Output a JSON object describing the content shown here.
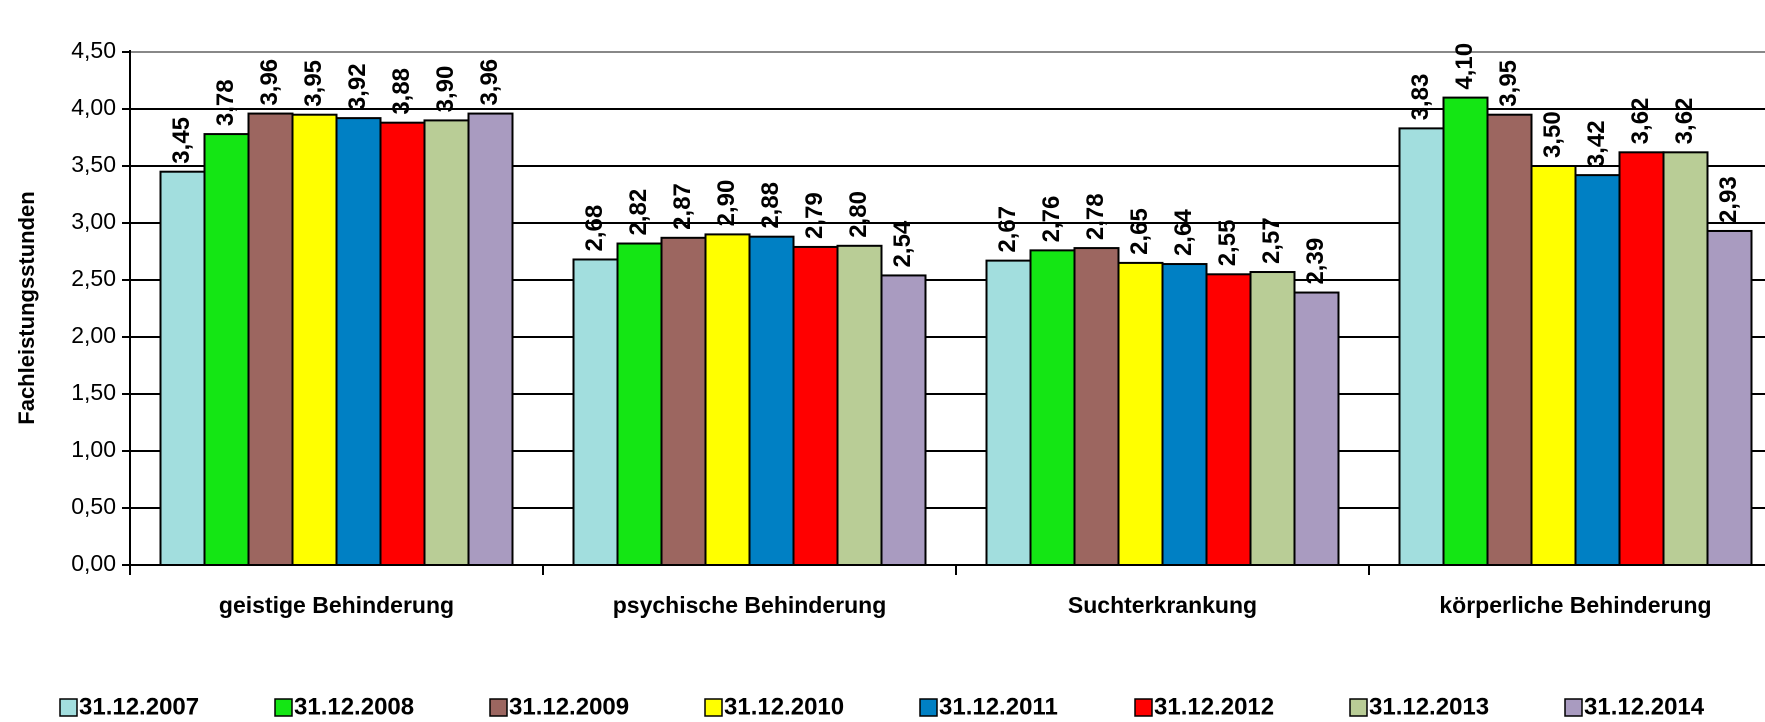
{
  "chart_data": {
    "type": "bar",
    "ylabel": "Fachleistungsstunden",
    "categories": [
      "geistige Behinderung",
      "psychische Behinderung",
      "Suchterkrankung",
      "körperliche Behinderung"
    ],
    "series": [
      {
        "name": "31.12.2007",
        "color": "#a2dede",
        "values": [
          3.45,
          2.68,
          2.67,
          3.83
        ],
        "value_labels": [
          "3,45",
          "2,68",
          "2,67",
          "3,83"
        ]
      },
      {
        "name": "31.12.2008",
        "color": "#14e614",
        "values": [
          3.78,
          2.82,
          2.76,
          4.1
        ],
        "value_labels": [
          "3,78",
          "2,82",
          "2,76",
          "4,10"
        ]
      },
      {
        "name": "31.12.2009",
        "color": "#9c6660",
        "values": [
          3.96,
          2.87,
          2.78,
          3.95
        ],
        "value_labels": [
          "3,96",
          "2,87",
          "2,78",
          "3,95"
        ]
      },
      {
        "name": "31.12.2010",
        "color": "#ffff00",
        "values": [
          3.95,
          2.9,
          2.65,
          3.5
        ],
        "value_labels": [
          "3,95",
          "2,90",
          "2,65",
          "3,50"
        ]
      },
      {
        "name": "31.12.2011",
        "color": "#0080c4",
        "values": [
          3.92,
          2.88,
          2.64,
          3.42
        ],
        "value_labels": [
          "3,92",
          "2,88",
          "2,64",
          "3,42"
        ]
      },
      {
        "name": "31.12.2012",
        "color": "#ff0000",
        "values": [
          3.88,
          2.79,
          2.55,
          3.62
        ],
        "value_labels": [
          "3,88",
          "2,79",
          "2,55",
          "3,62"
        ]
      },
      {
        "name": "31.12.2013",
        "color": "#b9cd96",
        "values": [
          3.9,
          2.8,
          2.57,
          3.62
        ],
        "value_labels": [
          "3,90",
          "2,80",
          "2,57",
          "3,62"
        ]
      },
      {
        "name": "31.12.2014",
        "color": "#a99bc0",
        "values": [
          3.96,
          2.54,
          2.39,
          2.93
        ],
        "value_labels": [
          "3,96",
          "2,54",
          "2,39",
          "2,93"
        ]
      }
    ],
    "ylim": [
      0,
      4.5
    ],
    "yticks": [
      {
        "value": 0,
        "label": "0,00"
      },
      {
        "value": 0.5,
        "label": "0,50"
      },
      {
        "value": 1,
        "label": "1,00"
      },
      {
        "value": 1.5,
        "label": "1,50"
      },
      {
        "value": 2,
        "label": "2,00"
      },
      {
        "value": 2.5,
        "label": "2,50"
      },
      {
        "value": 3,
        "label": "3,00"
      },
      {
        "value": 3.5,
        "label": "3,50"
      },
      {
        "value": 4,
        "label": "4,00"
      },
      {
        "value": 4.5,
        "label": "4,50"
      }
    ],
    "grid": true,
    "legend": "bottom"
  }
}
